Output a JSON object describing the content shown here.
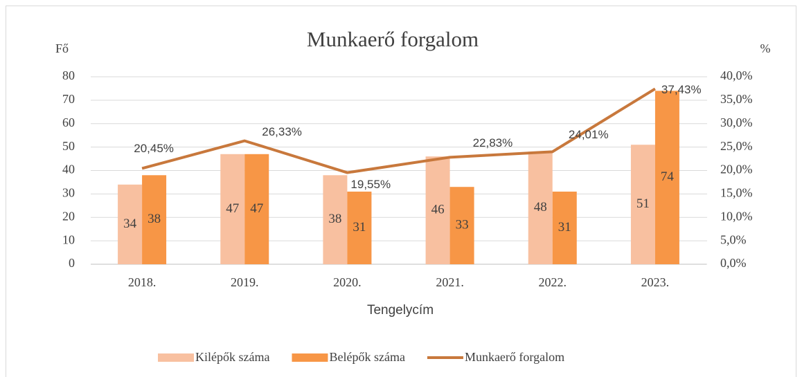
{
  "chart_data": {
    "type": "bar",
    "title": "Munkaerő forgalom",
    "y_label": "Fő",
    "y2_label": "%",
    "x_label": "Tengelycím",
    "categories": [
      "2018.",
      "2019.",
      "2020.",
      "2021.",
      "2022.",
      "2023."
    ],
    "series": [
      {
        "name": "Kilépők száma",
        "color": "#f8c0a0",
        "type": "bar",
        "values": [
          34,
          47,
          38,
          46,
          48,
          51
        ]
      },
      {
        "name": "Belépők száma",
        "color": "#f79646",
        "type": "bar",
        "values": [
          38,
          47,
          31,
          33,
          31,
          74
        ]
      },
      {
        "name": "Munkaerő forgalom",
        "color": "#c8783c",
        "type": "line",
        "axis": "y2",
        "values": [
          20.45,
          26.33,
          19.55,
          22.83,
          24.01,
          37.43
        ],
        "value_labels": [
          "20,45%",
          "26,33%",
          "19,55%",
          "22,83%",
          "24,01%",
          "37,43%"
        ]
      }
    ],
    "ylim": [
      0,
      80
    ],
    "yticks": [
      0,
      10,
      20,
      30,
      40,
      50,
      60,
      70,
      80
    ],
    "y2lim": [
      0,
      40
    ],
    "y2ticks": [
      {
        "value": 0,
        "label": "0,0%"
      },
      {
        "value": 5,
        "label": "5,0%"
      },
      {
        "value": 10,
        "label": "10,0%"
      },
      {
        "value": 15,
        "label": "15,0%"
      },
      {
        "value": 20,
        "label": "20,0%"
      },
      {
        "value": 25,
        "label": "25,0%"
      },
      {
        "value": 30,
        "label": "30,0%"
      },
      {
        "value": 35,
        "label": "35,0%"
      },
      {
        "value": 40,
        "label": "40,0%"
      }
    ],
    "grid": true,
    "legend": "bottom"
  }
}
